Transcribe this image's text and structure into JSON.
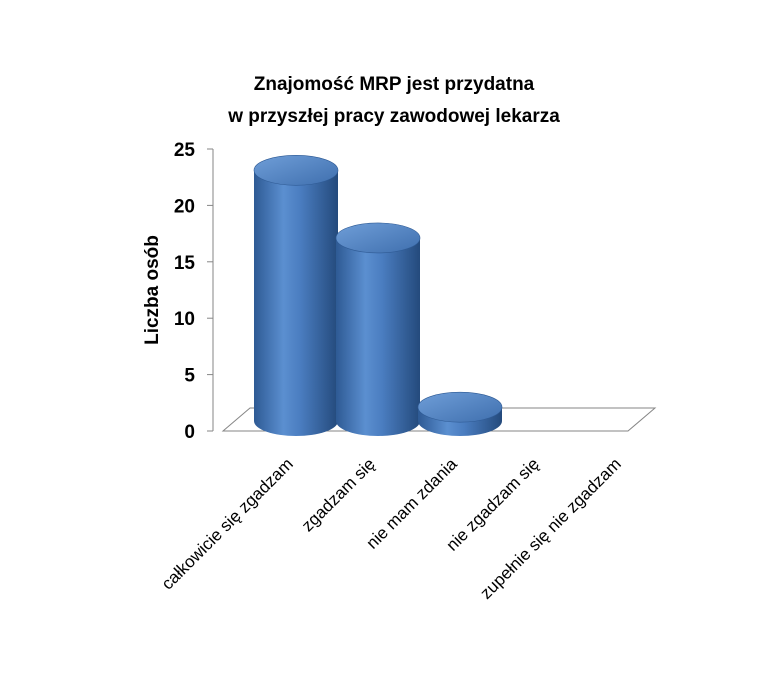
{
  "chart_data": {
    "type": "bar",
    "title_lines": [
      "Znajomość MRP jest przydatna",
      "w przyszłej pracy zawodowej lekarza"
    ],
    "xlabel": "",
    "ylabel": "Liczba osób",
    "categories": [
      "całkowicie się zgadzam",
      "zgadzam się",
      "nie mam zdania",
      "nie zgadzam się",
      "zupełnie się nie zgadzam"
    ],
    "values": [
      24,
      18,
      3,
      0,
      0
    ],
    "ylim": [
      0,
      25
    ],
    "yticks": [
      0,
      5,
      10,
      15,
      20,
      25
    ],
    "bar_style": "3d-cylinder",
    "bar_color": "#4F81BD",
    "grid": false,
    "legend": "none"
  }
}
